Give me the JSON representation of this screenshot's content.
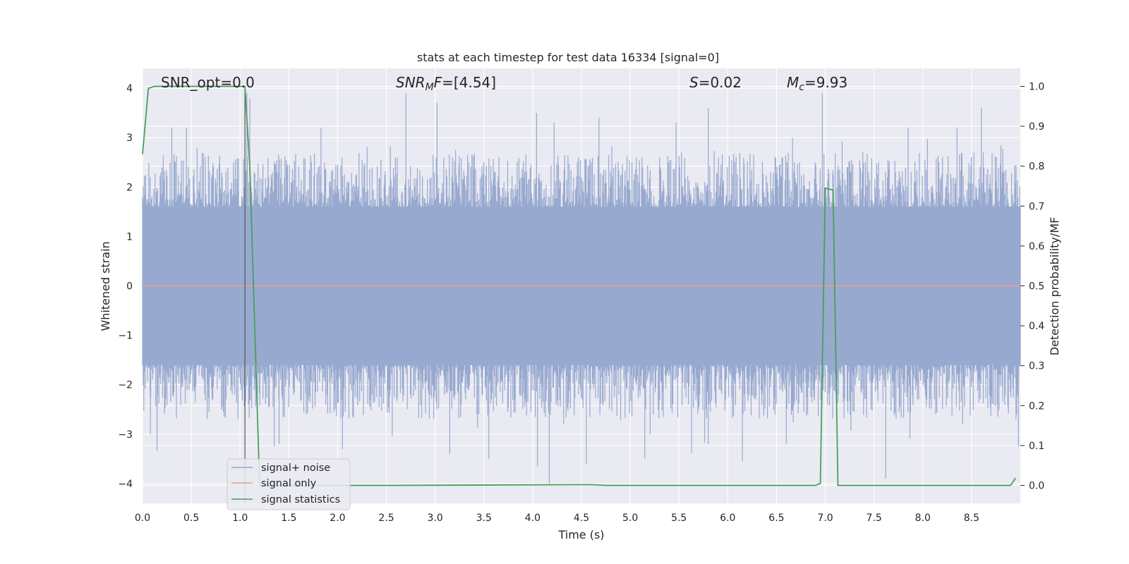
{
  "chart_data": {
    "type": "line",
    "title": "stats at each timestep for test data 16334 [signal=0]",
    "xlabel": "Time (s)",
    "ylabel": "Whitened strain",
    "ylabel_right": "Detection probability/MF",
    "xlim": [
      0.0,
      9.0
    ],
    "ylim": [
      -4.4,
      4.4
    ],
    "ylim_right": [
      -0.045,
      1.045
    ],
    "xticks": [
      "0.0",
      "0.5",
      "1.0",
      "1.5",
      "2.0",
      "2.5",
      "3.0",
      "3.5",
      "4.0",
      "4.5",
      "5.0",
      "5.5",
      "6.0",
      "6.5",
      "7.0",
      "7.5",
      "8.0",
      "8.5"
    ],
    "yticks": [
      "4",
      "3",
      "2",
      "1",
      "0",
      "−1",
      "−2",
      "−3",
      "−4"
    ],
    "yticks_right": [
      "1.0",
      "0.9",
      "0.8",
      "0.7",
      "0.6",
      "0.5",
      "0.4",
      "0.3",
      "0.2",
      "0.1",
      "0.0"
    ],
    "grid": true,
    "legend_position": "lower-left",
    "colors": {
      "noise": "#98a9cf",
      "signal_only": "#e5a08a",
      "statistics": "#4a9e5c",
      "background": "#eaeaf2",
      "marker_line": "#555555"
    },
    "annotations": [
      {
        "text": "SNR_opt=0.0",
        "italic": false
      },
      {
        "text": "SNR_MF=[4.54]",
        "italic": true
      },
      {
        "text": "S=0.02",
        "italic": true
      },
      {
        "text": "M_c=9.93",
        "italic": true
      }
    ],
    "series": [
      {
        "name": "signal+ noise",
        "kind": "noise",
        "description_stats": {
          "core_amplitude": 1.6,
          "typical_peak": 2.4,
          "max": 3.9,
          "min": -4.0
        }
      },
      {
        "name": "signal only",
        "kind": "line",
        "x": [
          0.0,
          9.0
        ],
        "y": [
          0.0,
          0.0
        ]
      },
      {
        "name": "signal statistics",
        "kind": "line",
        "axis": "right",
        "x": [
          0.0,
          0.06,
          0.12,
          1.05,
          1.1,
          1.2,
          1.5,
          2.6,
          4.6,
          4.75,
          6.9,
          6.95,
          7.0,
          7.08,
          7.13,
          8.9,
          8.95
        ],
        "y": [
          0.83,
          0.995,
          1.0,
          1.0,
          0.8,
          0.0,
          0.0,
          0.0,
          0.002,
          0.0,
          0.0,
          0.005,
          0.745,
          0.74,
          0.0,
          0.0,
          0.018
        ]
      }
    ],
    "vertical_marker_x": 1.05,
    "noise_spikes": [
      {
        "x": 1.07,
        "y": 3.9
      },
      {
        "x": 1.1,
        "y": 3.8
      },
      {
        "x": 2.7,
        "y": 3.9
      },
      {
        "x": 3.02,
        "y": 3.7
      },
      {
        "x": 4.04,
        "y": 3.5
      },
      {
        "x": 4.22,
        "y": 3.3
      },
      {
        "x": 4.68,
        "y": 3.4
      },
      {
        "x": 5.47,
        "y": 3.3
      },
      {
        "x": 5.8,
        "y": 3.6
      },
      {
        "x": 6.97,
        "y": 3.9
      },
      {
        "x": 8.6,
        "y": 3.6
      },
      {
        "x": 0.3,
        "y": 3.2
      },
      {
        "x": 0.45,
        "y": 3.2
      },
      {
        "x": 1.83,
        "y": 3.2
      },
      {
        "x": 7.85,
        "y": 3.2
      },
      {
        "x": 8.35,
        "y": 3.2
      },
      {
        "x": 1.4,
        "y": -3.2
      },
      {
        "x": 1.35,
        "y": -3.25
      },
      {
        "x": 2.05,
        "y": -3.3
      },
      {
        "x": 3.15,
        "y": -3.4
      },
      {
        "x": 3.55,
        "y": -3.5
      },
      {
        "x": 4.05,
        "y": -3.65
      },
      {
        "x": 4.17,
        "y": -4.0
      },
      {
        "x": 4.55,
        "y": -3.6
      },
      {
        "x": 5.15,
        "y": -3.5
      },
      {
        "x": 6.15,
        "y": -3.55
      },
      {
        "x": 7.62,
        "y": -3.9
      },
      {
        "x": 0.08,
        "y": -3.0
      },
      {
        "x": 0.15,
        "y": -2.9
      },
      {
        "x": 5.8,
        "y": -3.2
      },
      {
        "x": 6.6,
        "y": -3.2
      },
      {
        "x": 8.98,
        "y": -3.25
      }
    ]
  }
}
